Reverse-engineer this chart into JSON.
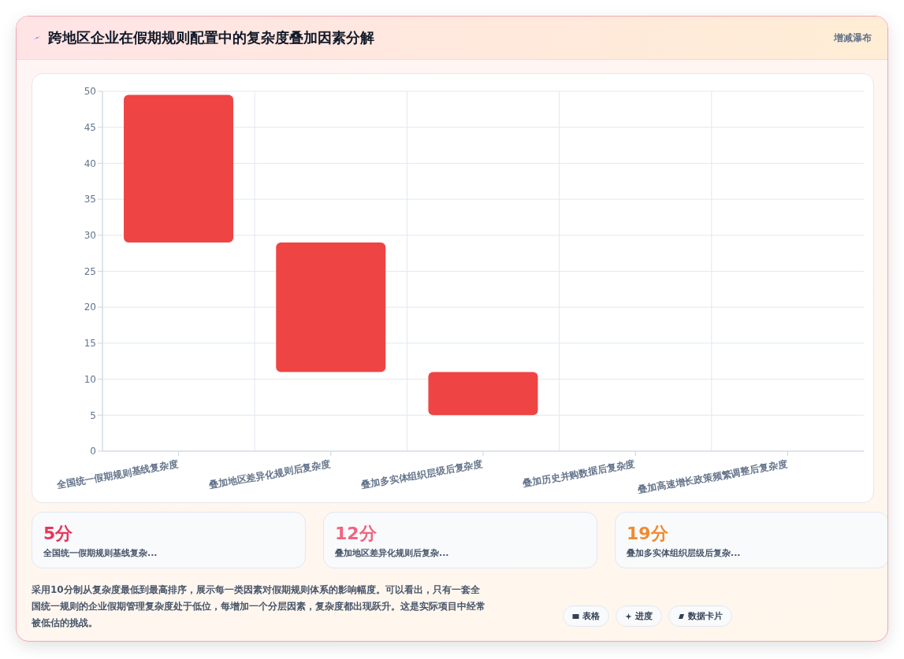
{
  "chart_data": {
    "type": "bar",
    "title": "跨地区企业在假期规则配置中的复杂度叠加因素分解",
    "subtitle": "增减瀑布",
    "categories": [
      "全国统一假期规则基线复杂度",
      "叠加地区差异化规则后复杂度",
      "叠加多实体组织层级后复杂度",
      "叠加历史并购数据后复杂度",
      "叠加高速增长政策频繁调整后复杂度"
    ],
    "values": [
      20.5,
      18,
      6,
      null,
      null
    ],
    "base": [
      29,
      11,
      5,
      null,
      null
    ],
    "color": "#ef4444",
    "ylim": [
      0,
      50
    ],
    "yticks": [
      0,
      5,
      10,
      15,
      20,
      25,
      30,
      35,
      40,
      45,
      50
    ],
    "grid": true,
    "annotations": [
      "5分",
      "全国统一假期规则基线复杂...",
      "12分",
      "叠加地区差异化规则后复杂...",
      "19分",
      "叠加多实体组织层级后复杂...",
      "采用10分制从复杂度最低到最高排序，展示每一类因素对假期规则体系的影响幅度。可以看出，只有一套全国统一规则的企业假期管理复杂度处于低位，每增加一个分层因素，复杂度都出现跃升。这是实际项目中经常被低估的挑战。",
      "表格",
      "进度",
      "数据卡片"
    ]
  }
}
